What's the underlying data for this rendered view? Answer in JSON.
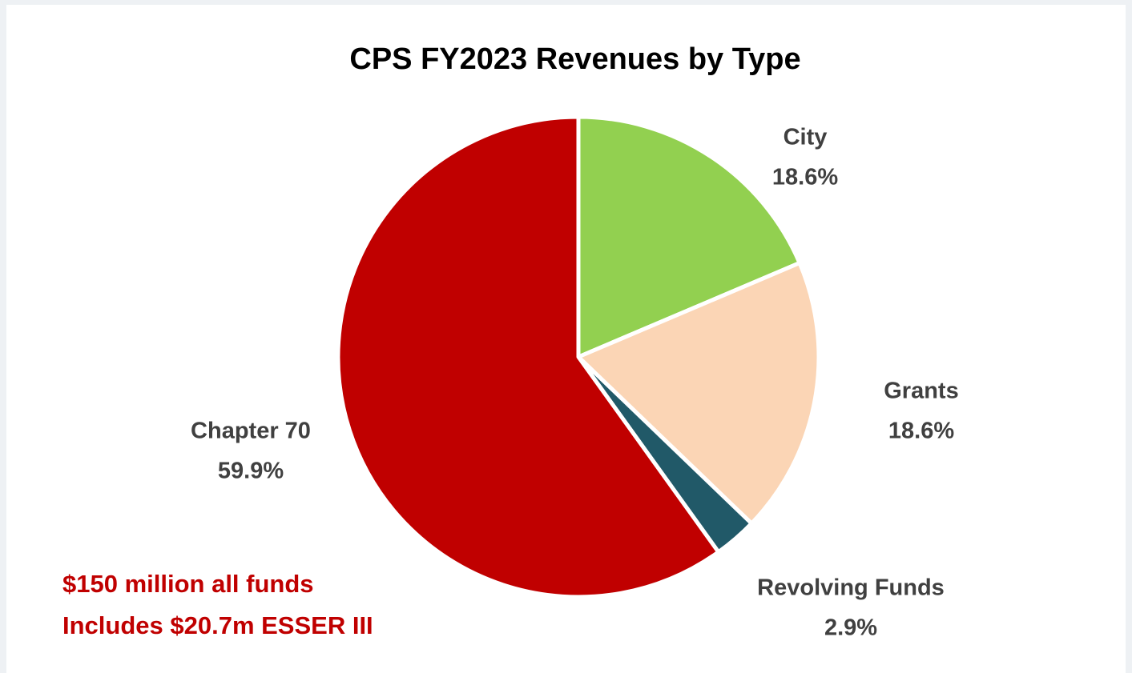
{
  "chart_data": {
    "type": "pie",
    "title": "CPS FY2023 Revenues by Type",
    "categories": [
      "City",
      "Grants",
      "Revolving Funds",
      "Chapter 70"
    ],
    "values": [
      18.6,
      18.6,
      2.9,
      59.9
    ],
    "value_labels": [
      "18.6%",
      "18.6%",
      "2.9%",
      "59.9%"
    ],
    "colors": [
      "#92d050",
      "#fbd5b5",
      "#215968",
      "#c00000"
    ],
    "annotations": [
      "$150 million all funds",
      "Includes $20.7m ESSER III"
    ],
    "annotation_color": "#c00000"
  }
}
